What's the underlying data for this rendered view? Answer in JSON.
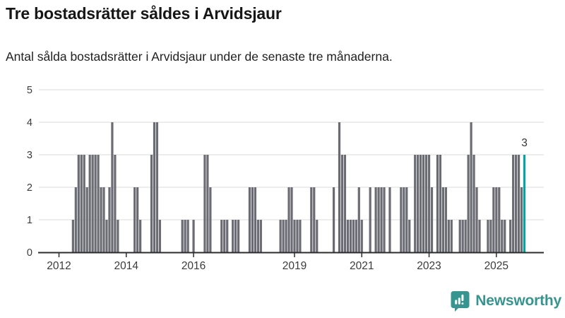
{
  "header": {
    "title": "Tre bostadsrätter såldes i Arvidsjaur",
    "subtitle": "Antal sålda bostadsrätter i Arvidsjaur under de senaste tre månaderna."
  },
  "colors": {
    "bar": "#6b6b74",
    "highlight": "#0aa1a3",
    "gridline": "#e2e2e2",
    "axis": "#2d2d2d",
    "tick_text": "#3b3b3b",
    "value_label_text": "#333333",
    "logo": "#38948f",
    "background": "#ffffff"
  },
  "chart_data": {
    "type": "bar",
    "title": "Tre bostadsrätter såldes i Arvidsjaur",
    "subtitle": "Antal sålda bostadsrätter i Arvidsjaur under de senaste tre månaderna.",
    "xlabel": "",
    "ylabel": "",
    "ylim": [
      0,
      5
    ],
    "grid": "horizontal",
    "y_ticks": [
      "0",
      "1",
      "2",
      "3",
      "4",
      "5"
    ],
    "x_ticks": [
      "2012",
      "2014",
      "2016",
      "2019",
      "2021",
      "2023",
      "2025"
    ],
    "start_month": "2012-01",
    "end_month": "2025-11",
    "values_by_year": {
      "2012": [
        0,
        0,
        0,
        0,
        0,
        1,
        2,
        3,
        3,
        3,
        2,
        3
      ],
      "2013": [
        3,
        3,
        3,
        2,
        2,
        1,
        2,
        4,
        3,
        1,
        0,
        0
      ],
      "2014": [
        0,
        0,
        0,
        2,
        2,
        1,
        0,
        0,
        0,
        3,
        4,
        4
      ],
      "2015": [
        1,
        0,
        0,
        0,
        0,
        0,
        0,
        0,
        1,
        1,
        1,
        0
      ],
      "2016": [
        1,
        0,
        0,
        0,
        3,
        3,
        2,
        0,
        0,
        0,
        1,
        1
      ],
      "2017": [
        1,
        0,
        1,
        1,
        1,
        0,
        0,
        0,
        2,
        2,
        2,
        1
      ],
      "2018": [
        1,
        0,
        0,
        0,
        0,
        0,
        0,
        1,
        1,
        1,
        2,
        2
      ],
      "2019": [
        1,
        1,
        1,
        0,
        0,
        0,
        2,
        2,
        1,
        0,
        0,
        0
      ],
      "2020": [
        0,
        0,
        2,
        0,
        4,
        3,
        3,
        1,
        1,
        1,
        1,
        2
      ],
      "2021": [
        1,
        0,
        0,
        2,
        0,
        2,
        2,
        2,
        2,
        0,
        2,
        0
      ],
      "2022": [
        0,
        0,
        2,
        2,
        2,
        1,
        0,
        3,
        3,
        3,
        3,
        3
      ],
      "2023": [
        3,
        2,
        0,
        3,
        3,
        2,
        2,
        1,
        1,
        0,
        0,
        1
      ],
      "2024": [
        1,
        1,
        3,
        4,
        3,
        2,
        1,
        0,
        0,
        1,
        1,
        2
      ],
      "2025": [
        2,
        2,
        1,
        1,
        0,
        1,
        3,
        3,
        3,
        2,
        3
      ]
    },
    "highlight": {
      "month": "2025-11",
      "value": 3,
      "label": "3"
    },
    "legend": null
  },
  "branding": {
    "logo_text": "Newsworthy"
  }
}
